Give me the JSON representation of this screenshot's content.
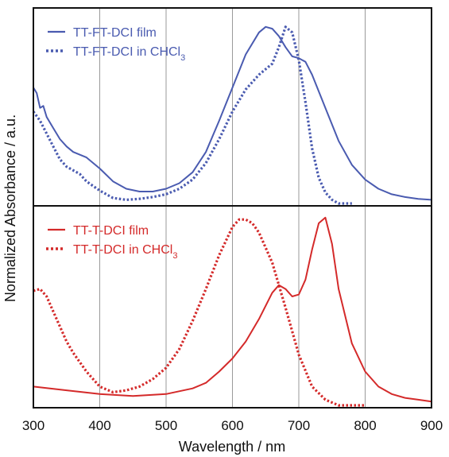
{
  "chart_data": [
    {
      "type": "line",
      "panel": "top",
      "xlabel": "Wavelength / nm",
      "ylabel": "Normalized Absorbance / a.u.",
      "xlim": [
        300,
        900
      ],
      "ylim": [
        0,
        1.05
      ],
      "xticks": [
        "300",
        "400",
        "500",
        "600",
        "700",
        "800",
        "900"
      ],
      "grid": "vertical",
      "legend_position": "top-left",
      "series": [
        {
          "name": "TT-FT-DCI film",
          "color": "#4a5bb0",
          "style": "solid",
          "x": [
            300,
            305,
            310,
            315,
            320,
            330,
            340,
            350,
            360,
            380,
            400,
            420,
            440,
            460,
            480,
            500,
            520,
            540,
            560,
            580,
            600,
            620,
            640,
            650,
            660,
            670,
            680,
            690,
            700,
            710,
            720,
            740,
            760,
            780,
            800,
            820,
            840,
            860,
            880,
            900
          ],
          "y": [
            0.63,
            0.6,
            0.52,
            0.53,
            0.47,
            0.41,
            0.35,
            0.31,
            0.28,
            0.25,
            0.19,
            0.12,
            0.08,
            0.065,
            0.065,
            0.08,
            0.11,
            0.17,
            0.28,
            0.45,
            0.63,
            0.81,
            0.93,
            0.96,
            0.95,
            0.91,
            0.85,
            0.8,
            0.79,
            0.77,
            0.7,
            0.52,
            0.34,
            0.21,
            0.13,
            0.08,
            0.05,
            0.035,
            0.025,
            0.02
          ]
        },
        {
          "name": "TT-FT-DCI in CHCl3",
          "color": "#4a5bb0",
          "style": "dotted",
          "x": [
            300,
            310,
            320,
            330,
            340,
            350,
            360,
            370,
            380,
            400,
            420,
            440,
            460,
            480,
            500,
            520,
            540,
            560,
            580,
            600,
            620,
            640,
            660,
            670,
            680,
            690,
            700,
            710,
            720,
            730,
            740,
            750,
            760,
            780
          ],
          "y": [
            0.5,
            0.45,
            0.38,
            0.31,
            0.24,
            0.2,
            0.18,
            0.16,
            0.12,
            0.07,
            0.03,
            0.02,
            0.025,
            0.035,
            0.05,
            0.08,
            0.13,
            0.22,
            0.35,
            0.5,
            0.62,
            0.7,
            0.76,
            0.85,
            0.96,
            0.93,
            0.78,
            0.55,
            0.3,
            0.14,
            0.06,
            0.02,
            0.0,
            0.0
          ]
        }
      ]
    },
    {
      "type": "line",
      "panel": "bottom",
      "xlabel": "Wavelength / nm",
      "xlim": [
        300,
        900
      ],
      "ylim": [
        0,
        1.05
      ],
      "xticks": [
        "300",
        "400",
        "500",
        "600",
        "700",
        "800",
        "900"
      ],
      "grid": "vertical",
      "legend_position": "top-left",
      "series": [
        {
          "name": "TT-T-DCI film",
          "color": "#d42a2a",
          "style": "solid",
          "x": [
            300,
            350,
            400,
            450,
            500,
            540,
            560,
            580,
            600,
            620,
            640,
            660,
            670,
            680,
            690,
            700,
            710,
            720,
            730,
            740,
            750,
            760,
            780,
            800,
            820,
            840,
            860,
            880,
            900
          ],
          "y": [
            0.1,
            0.08,
            0.06,
            0.05,
            0.06,
            0.09,
            0.12,
            0.18,
            0.25,
            0.34,
            0.46,
            0.6,
            0.64,
            0.62,
            0.58,
            0.59,
            0.67,
            0.83,
            0.97,
            1.0,
            0.86,
            0.62,
            0.33,
            0.18,
            0.1,
            0.06,
            0.04,
            0.03,
            0.02
          ]
        },
        {
          "name": "TT-T-DCI in CHCl3",
          "color": "#d42a2a",
          "style": "dotted",
          "x": [
            300,
            310,
            320,
            330,
            340,
            350,
            360,
            380,
            400,
            420,
            440,
            460,
            480,
            500,
            520,
            540,
            560,
            580,
            600,
            610,
            620,
            630,
            640,
            660,
            680,
            700,
            720,
            740,
            760,
            780,
            800
          ],
          "y": [
            0.61,
            0.62,
            0.58,
            0.5,
            0.42,
            0.34,
            0.28,
            0.18,
            0.1,
            0.07,
            0.08,
            0.1,
            0.14,
            0.2,
            0.3,
            0.45,
            0.62,
            0.8,
            0.95,
            0.99,
            0.99,
            0.97,
            0.92,
            0.76,
            0.52,
            0.27,
            0.1,
            0.03,
            0.0,
            0.0,
            0.0
          ]
        }
      ]
    }
  ]
}
